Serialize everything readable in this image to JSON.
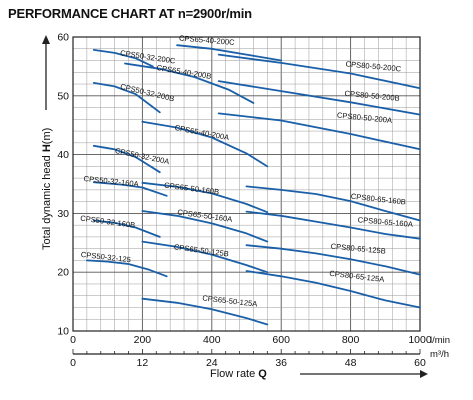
{
  "chart_data": {
    "type": "line",
    "title": "PERFORMANCE CHART AT n=2900r/min",
    "ylabel_prefix": "Total dynamic head ",
    "ylabel_sym": "H",
    "ylabel_unit": "(m)",
    "xlabel_prefix": "Flow rate ",
    "xlabel_sym": "Q",
    "x_unit_top": "l/min",
    "x_unit_bottom": "m³/h",
    "x_units": "l/min",
    "xlim": [
      0,
      1000
    ],
    "ylim": [
      10,
      60
    ],
    "grid": true,
    "x_ticks_top": [
      "0",
      "200",
      "400",
      "600",
      "800",
      "1000"
    ],
    "x_ticks_top_values": [
      0,
      200,
      400,
      600,
      800,
      1000
    ],
    "x_ticks_bottom": [
      "0",
      "12",
      "24",
      "36",
      "48",
      "60"
    ],
    "x_ticks_bottom_values": [
      0,
      200,
      400,
      600,
      800,
      1000
    ],
    "y_ticks": [
      "10",
      "20",
      "30",
      "40",
      "50",
      "60"
    ],
    "y_ticks_values": [
      10,
      20,
      30,
      40,
      50,
      60
    ],
    "line_color": "#1a5fa8",
    "series": [
      {
        "name": "CPS65-40-200C",
        "points": [
          [
            300,
            58.6
          ],
          [
            400,
            58.0
          ],
          [
            500,
            57.0
          ],
          [
            600,
            56.0
          ]
        ],
        "label_x": 305,
        "label_y": 59.4
      },
      {
        "name": "CPS50-32-200C",
        "points": [
          [
            60,
            57.8
          ],
          [
            120,
            57.3
          ],
          [
            180,
            56.4
          ],
          [
            230,
            55.0
          ]
        ],
        "label_x": 135,
        "label_y": 56.9
      },
      {
        "name": "CPS65-40-200B",
        "points": [
          [
            150,
            55.5
          ],
          [
            250,
            54.6
          ],
          [
            350,
            53.2
          ],
          [
            450,
            51.0
          ],
          [
            520,
            48.8
          ]
        ],
        "label_x": 240,
        "label_y": 54.4
      },
      {
        "name": "CPS80-50-200C",
        "points": [
          [
            420,
            57.0
          ],
          [
            600,
            55.6
          ],
          [
            800,
            53.8
          ],
          [
            1000,
            51.3
          ]
        ],
        "label_x": 785,
        "label_y": 55.0
      },
      {
        "name": "CPS50-32-200B",
        "points": [
          [
            60,
            52.2
          ],
          [
            120,
            51.6
          ],
          [
            180,
            50.3
          ],
          [
            250,
            47.2
          ]
        ],
        "label_x": 135,
        "label_y": 51.2
      },
      {
        "name": "CPS80-50-200B",
        "points": [
          [
            420,
            52.5
          ],
          [
            600,
            50.8
          ],
          [
            800,
            48.9
          ],
          [
            1000,
            46.8
          ]
        ],
        "label_x": 782,
        "label_y": 50.0
      },
      {
        "name": "CPS65-40-200A",
        "points": [
          [
            200,
            45.6
          ],
          [
            300,
            44.6
          ],
          [
            400,
            42.9
          ],
          [
            500,
            40.2
          ],
          [
            560,
            38.0
          ]
        ],
        "label_x": 292,
        "label_y": 44.2
      },
      {
        "name": "CPS80-50-200A",
        "points": [
          [
            420,
            47.0
          ],
          [
            600,
            45.8
          ],
          [
            800,
            43.5
          ],
          [
            1000,
            40.9
          ]
        ],
        "label_x": 760,
        "label_y": 46.3
      },
      {
        "name": "CPS50-32-200A",
        "points": [
          [
            60,
            41.5
          ],
          [
            120,
            40.9
          ],
          [
            180,
            39.6
          ],
          [
            250,
            37.0
          ]
        ],
        "label_x": 120,
        "label_y": 40.3
      },
      {
        "name": "CPS50-32-160A",
        "points": [
          [
            60,
            35.3
          ],
          [
            140,
            34.9
          ],
          [
            200,
            34.4
          ],
          [
            270,
            33.0
          ]
        ],
        "label_x": 30,
        "label_y": 35.5
      },
      {
        "name": "CPS65-50-160B",
        "points": [
          [
            200,
            35.2
          ],
          [
            300,
            34.5
          ],
          [
            400,
            33.4
          ],
          [
            500,
            31.6
          ],
          [
            560,
            30.2
          ]
        ],
        "label_x": 262,
        "label_y": 34.4
      },
      {
        "name": "CPS80-65-160B",
        "points": [
          [
            500,
            34.6
          ],
          [
            600,
            34.0
          ],
          [
            700,
            33.3
          ],
          [
            800,
            32.1
          ],
          [
            900,
            30.4
          ],
          [
            1000,
            28.8
          ]
        ],
        "label_x": 800,
        "label_y": 32.5
      },
      {
        "name": "CPS65-50-160A",
        "points": [
          [
            200,
            30.4
          ],
          [
            300,
            29.6
          ],
          [
            400,
            28.3
          ],
          [
            500,
            26.6
          ],
          [
            560,
            25.2
          ]
        ],
        "label_x": 300,
        "label_y": 29.8
      },
      {
        "name": "CPS80-65-160A",
        "points": [
          [
            500,
            30.3
          ],
          [
            600,
            29.6
          ],
          [
            700,
            28.6
          ],
          [
            800,
            27.6
          ],
          [
            900,
            26.5
          ],
          [
            1000,
            25.7
          ]
        ],
        "label_x": 820,
        "label_y": 28.5
      },
      {
        "name": "CPS50-32-160B",
        "points": [
          [
            60,
            28.8
          ],
          [
            120,
            28.4
          ],
          [
            180,
            27.6
          ],
          [
            250,
            26.0
          ]
        ],
        "label_x": 20,
        "label_y": 28.8
      },
      {
        "name": "CPS65-50-125B",
        "points": [
          [
            200,
            25.2
          ],
          [
            300,
            24.3
          ],
          [
            400,
            23.0
          ],
          [
            500,
            21.2
          ],
          [
            560,
            20.0
          ]
        ],
        "label_x": 290,
        "label_y": 23.9
      },
      {
        "name": "CPS80-65-125B",
        "points": [
          [
            500,
            24.6
          ],
          [
            600,
            24.0
          ],
          [
            700,
            23.2
          ],
          [
            800,
            22.2
          ],
          [
            900,
            21.0
          ],
          [
            1000,
            19.6
          ]
        ],
        "label_x": 742,
        "label_y": 24.0
      },
      {
        "name": "CPS50-32-125",
        "points": [
          [
            40,
            22.0
          ],
          [
            100,
            21.8
          ],
          [
            160,
            21.4
          ],
          [
            220,
            20.4
          ],
          [
            270,
            19.3
          ]
        ],
        "label_x": 22,
        "label_y": 22.6
      },
      {
        "name": "CPS80-65-125A",
        "points": [
          [
            500,
            20.2
          ],
          [
            600,
            19.3
          ],
          [
            700,
            18.2
          ],
          [
            800,
            16.8
          ],
          [
            900,
            15.2
          ],
          [
            1000,
            14.0
          ]
        ],
        "label_x": 738,
        "label_y": 19.4
      },
      {
        "name": "CPS65-50-125A",
        "points": [
          [
            200,
            15.5
          ],
          [
            300,
            14.8
          ],
          [
            400,
            13.7
          ],
          [
            500,
            12.2
          ],
          [
            560,
            11.1
          ]
        ],
        "label_x": 372,
        "label_y": 15.2
      }
    ]
  }
}
